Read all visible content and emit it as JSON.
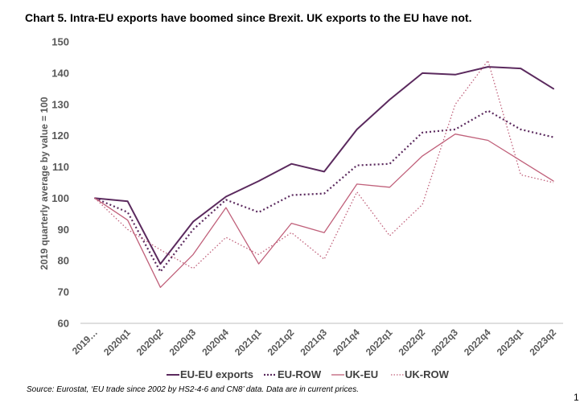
{
  "title": "Chart 5. Intra-EU exports have boomed since Brexit. UK exports to the EU have not.",
  "source": "Source: Eurostat, ‘EU trade since 2002 by HS2-4-6 and CN8’ data. Data are in current prices.",
  "page_number": "1",
  "chart_data": {
    "type": "line",
    "ylabel": "2019 quarterly average by value = 100",
    "ylim": [
      60,
      150
    ],
    "yticks": [
      60,
      70,
      80,
      90,
      100,
      110,
      120,
      130,
      140,
      150
    ],
    "categories": [
      "2019…",
      "2020q1",
      "2020q2",
      "2020q3",
      "2020q4",
      "2021q1",
      "2021q2",
      "2021q3",
      "2021q4",
      "2022q1",
      "2022q2",
      "2022q3",
      "2022q4",
      "2023q1",
      "2023q2"
    ],
    "grid": false,
    "legend_position": "bottom",
    "series": [
      {
        "name": "EU-EU exports",
        "color": "#5b2a5e",
        "style": "solid",
        "width": 2,
        "values": [
          100,
          99,
          79,
          92.5,
          100.5,
          105.5,
          111,
          108.5,
          122,
          131.5,
          140,
          139.5,
          142,
          141.5,
          135
        ]
      },
      {
        "name": "EU-ROW",
        "color": "#5b2a5e",
        "style": "dotted",
        "width": 2.2,
        "values": [
          100,
          95.5,
          76.5,
          90,
          99.5,
          95.5,
          101,
          101.5,
          110.5,
          111,
          121,
          122,
          128,
          122,
          119.5
        ]
      },
      {
        "name": "UK-EU",
        "color": "#c0607a",
        "style": "solid",
        "width": 1.3,
        "values": [
          100,
          93,
          71.5,
          82,
          97,
          79,
          92,
          89,
          104.5,
          103.5,
          113.5,
          120.5,
          118.5,
          112,
          105.5
        ]
      },
      {
        "name": "UK-ROW",
        "color": "#c0607a",
        "style": "dotted",
        "width": 1.3,
        "values": [
          100,
          90,
          83.5,
          77.5,
          87.5,
          82,
          89,
          80.5,
          102,
          88,
          98,
          130,
          144,
          107.5,
          105
        ]
      }
    ]
  }
}
